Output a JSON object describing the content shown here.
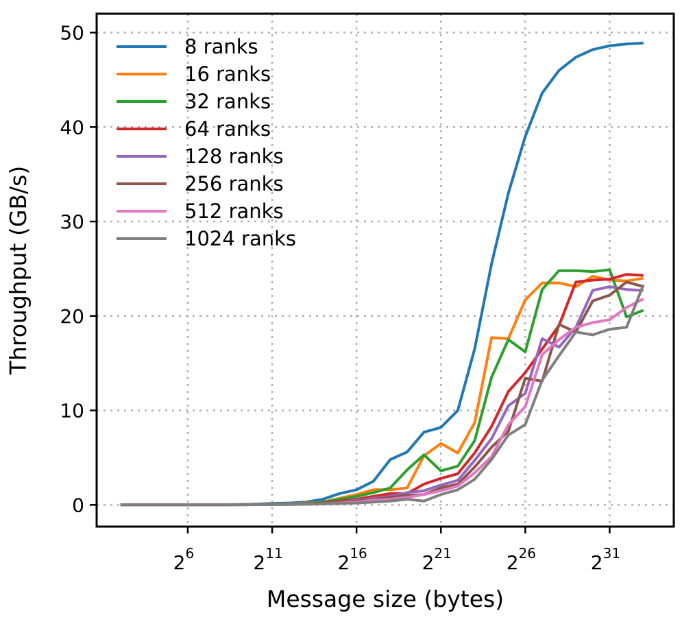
{
  "chart_data": {
    "type": "line",
    "title": "",
    "xlabel": "Message size (bytes)",
    "ylabel": "Throughput (GB/s)",
    "x_scale": "log2",
    "x_exponents": [
      2,
      3,
      4,
      5,
      6,
      7,
      8,
      9,
      10,
      11,
      12,
      13,
      14,
      15,
      16,
      17,
      18,
      19,
      20,
      21,
      22,
      23,
      24,
      25,
      26,
      27,
      28,
      29,
      30,
      31,
      32,
      33
    ],
    "xlim_exponents": [
      0.6,
      34.8
    ],
    "ylim": [
      -2.3,
      52
    ],
    "x_ticks": [
      6,
      11,
      16,
      21,
      26,
      31
    ],
    "x_tick_base": "2",
    "y_ticks": [
      0,
      10,
      20,
      30,
      40,
      50
    ],
    "grid": true,
    "legend_position": "top-left",
    "series": [
      {
        "name": "8 ranks",
        "color": "#1f77b4",
        "values": [
          0,
          0,
          0,
          0,
          0,
          0,
          0.02,
          0.04,
          0.08,
          0.15,
          0.2,
          0.3,
          0.6,
          1.2,
          1.6,
          2.5,
          4.8,
          5.6,
          7.7,
          8.2,
          10,
          16.5,
          25.5,
          33,
          39,
          43.6,
          46,
          47.4,
          48.2,
          48.6,
          48.8,
          48.9
        ]
      },
      {
        "name": "16 ranks",
        "color": "#ff7f0e",
        "values": [
          0,
          0,
          0,
          0,
          0,
          0,
          0.01,
          0.02,
          0.04,
          0.08,
          0.12,
          0.2,
          0.3,
          0.7,
          1.1,
          1.6,
          1.6,
          1.8,
          5.2,
          6.5,
          5.5,
          8.7,
          17.7,
          17.6,
          21.7,
          23.5,
          23.5,
          23.1,
          24.2,
          23.8,
          23.7,
          24
        ]
      },
      {
        "name": "32 ranks",
        "color": "#2ca02c",
        "values": [
          0,
          0,
          0,
          0,
          0,
          0,
          0.01,
          0.02,
          0.04,
          0.07,
          0.1,
          0.15,
          0.3,
          0.6,
          0.9,
          1.3,
          1.8,
          3.7,
          5.3,
          3.6,
          4.1,
          6.8,
          13.5,
          17.5,
          16.2,
          22.8,
          24.8,
          24.8,
          24.7,
          24.9,
          19.9,
          20.6
        ]
      },
      {
        "name": "64 ranks",
        "color": "#d62728",
        "values": [
          0,
          0,
          0,
          0,
          0,
          0,
          0.01,
          0.02,
          0.03,
          0.05,
          0.08,
          0.12,
          0.2,
          0.4,
          0.6,
          0.9,
          1.2,
          1.2,
          2.2,
          2.8,
          3.3,
          5.5,
          8.3,
          12,
          14,
          16.5,
          19,
          23.6,
          23.8,
          23.9,
          24.4,
          24.3
        ]
      },
      {
        "name": "128 ranks",
        "color": "#9467bd",
        "values": [
          0,
          0,
          0,
          0,
          0,
          0,
          0.01,
          0.02,
          0.03,
          0.05,
          0.07,
          0.1,
          0.15,
          0.3,
          0.5,
          0.7,
          0.9,
          1.3,
          1.5,
          2.1,
          2.6,
          4.7,
          7,
          10.5,
          11.8,
          17.6,
          16.7,
          18.8,
          22.7,
          23.1,
          22.8,
          22.7
        ]
      },
      {
        "name": "256 ranks",
        "color": "#8c564b",
        "values": [
          0,
          0,
          0,
          0,
          0,
          0,
          0.01,
          0.02,
          0.03,
          0.05,
          0.06,
          0.1,
          0.15,
          0.3,
          0.4,
          0.6,
          0.8,
          1,
          1.1,
          1.8,
          2.2,
          4,
          6.1,
          7.8,
          13.4,
          13.1,
          19.1,
          18.3,
          21.6,
          22.2,
          23.6,
          23.1
        ]
      },
      {
        "name": "512 ranks",
        "color": "#e377c2",
        "values": [
          0,
          0,
          0,
          0,
          0,
          0,
          0.01,
          0.01,
          0.02,
          0.04,
          0.05,
          0.08,
          0.12,
          0.2,
          0.3,
          0.5,
          0.6,
          0.8,
          1.1,
          1.5,
          2,
          3.4,
          5.1,
          8.5,
          10.4,
          15.9,
          17.5,
          18.8,
          19.3,
          19.6,
          20.9,
          21.8
        ]
      },
      {
        "name": "1024 ranks",
        "color": "#7f7f7f",
        "values": [
          0,
          0,
          0,
          0,
          0,
          0,
          0.01,
          0.01,
          0.02,
          0.03,
          0.04,
          0.06,
          0.1,
          0.15,
          0.2,
          0.3,
          0.4,
          0.6,
          0.4,
          1.1,
          1.6,
          2.7,
          4.8,
          7.4,
          8.5,
          13.2,
          15.8,
          18.3,
          18,
          18.6,
          18.8,
          23.3
        ]
      }
    ]
  }
}
